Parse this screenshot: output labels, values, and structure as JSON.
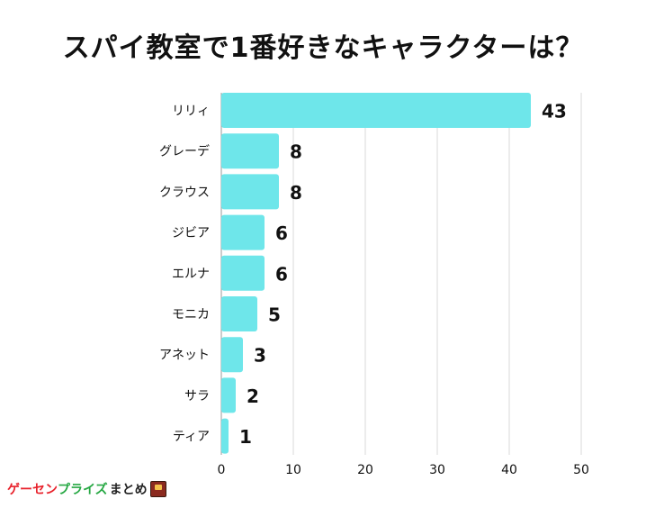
{
  "title": "スパイ教室で1番好きなキャラクターは？",
  "logo": {
    "part1": "ゲーセン",
    "part2": "プライズ",
    "part3": "まとめ",
    "icon": "crane-game-icon"
  },
  "colors": {
    "bar": "#6ee6ea",
    "grid": "#d9d9d9",
    "text": "#111111"
  },
  "chart_data": {
    "type": "bar",
    "orientation": "horizontal",
    "title": "スパイ教室で1番好きなキャラクターは？",
    "categories": [
      "リリィ",
      "グレーデ",
      "クラウス",
      "ジビア",
      "エルナ",
      "モニカ",
      "アネット",
      "サラ",
      "ティア"
    ],
    "values": [
      43,
      8,
      8,
      6,
      6,
      5,
      3,
      2,
      1
    ],
    "xlim": [
      0,
      50
    ],
    "xticks": [
      0,
      10,
      20,
      30,
      40,
      50
    ],
    "grid": true,
    "data_labels": true,
    "legend": "none"
  }
}
